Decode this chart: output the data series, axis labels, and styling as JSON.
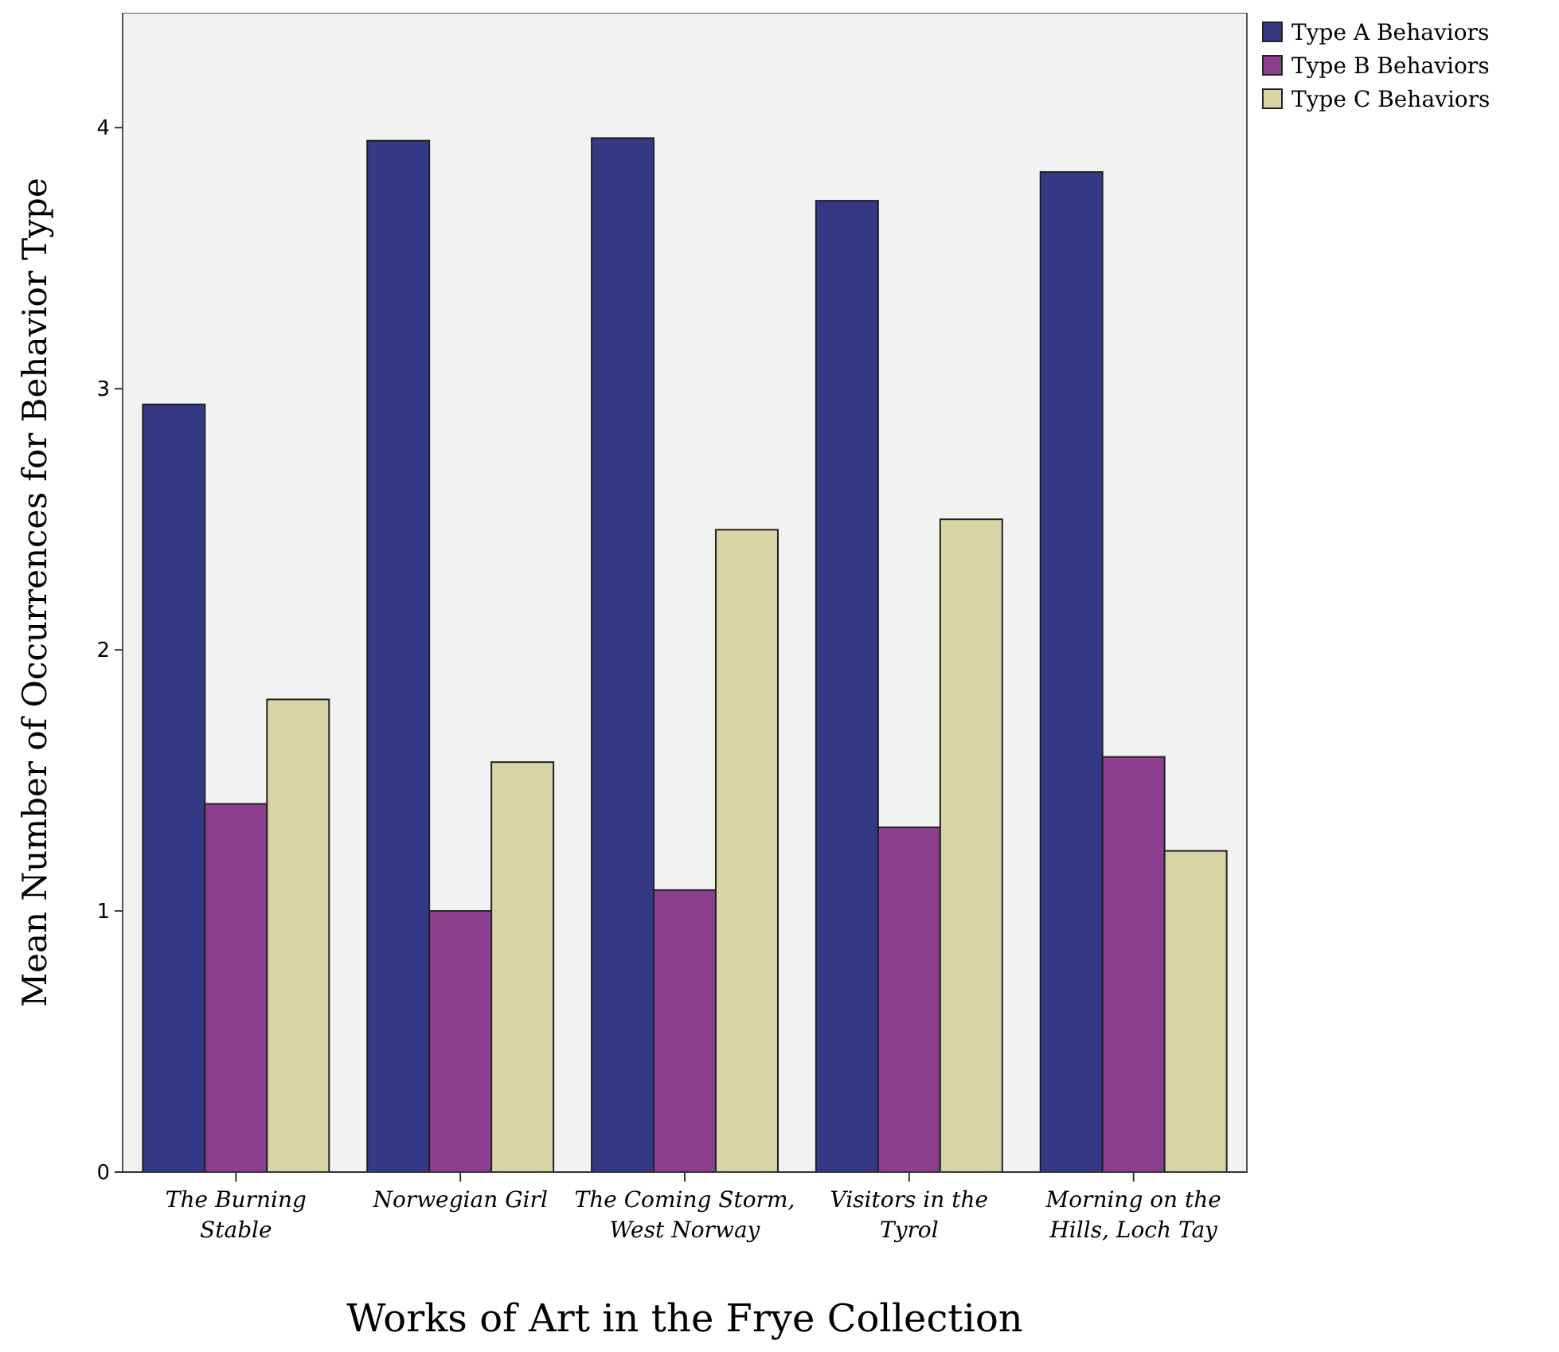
{
  "chart_data": {
    "type": "bar",
    "xlabel": "Works of Art in the Frye Collection",
    "ylabel": "Mean Number of Occurrences for Behavior Type",
    "categories": [
      "The Burning Stable",
      "Norwegian Girl",
      "The Coming Storm, West Norway",
      "Visitors in the Tyrol",
      "Morning on the Hills, Loch Tay"
    ],
    "series": [
      {
        "name": "Type A Behaviors",
        "color": "#333984",
        "values": [
          2.94,
          3.95,
          3.96,
          3.72,
          3.83
        ]
      },
      {
        "name": "Type B  Behaviors",
        "color": "#8b3f8e",
        "values": [
          1.41,
          1.0,
          1.08,
          1.32,
          1.59
        ]
      },
      {
        "name": "Type C Behaviors",
        "color": "#d9d4a5",
        "values": [
          1.81,
          1.57,
          2.46,
          2.5,
          1.23
        ]
      }
    ],
    "ylim": [
      0,
      4.44
    ],
    "yticks": [
      0,
      1,
      2,
      3,
      4
    ],
    "grid": false,
    "legend": "top right"
  }
}
